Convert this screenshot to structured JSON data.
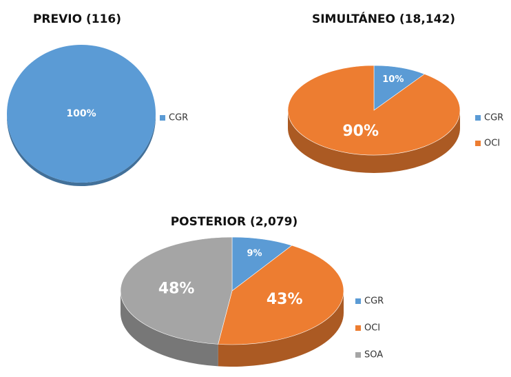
{
  "chart_data": [
    {
      "type": "pie",
      "title": "PREVIO  (116)",
      "categories": [
        "CGR"
      ],
      "values": [
        100
      ],
      "value_labels": [
        "100%"
      ],
      "colors": [
        "#5b9bd5"
      ]
    },
    {
      "type": "pie",
      "title": "SIMULTÁNEO  (18,142)",
      "categories": [
        "CGR",
        "OCI"
      ],
      "values": [
        10,
        90
      ],
      "value_labels": [
        "10%",
        "90%"
      ],
      "colors": [
        "#5b9bd5",
        "#ed7d31"
      ]
    },
    {
      "type": "pie",
      "title": "POSTERIOR  (2,079)",
      "categories": [
        "CGR",
        "OCI",
        "SOA"
      ],
      "values": [
        9,
        43,
        48
      ],
      "value_labels": [
        "9%",
        "43%",
        "48%"
      ],
      "colors": [
        "#5b9bd5",
        "#ed7d31",
        "#a5a5a5"
      ]
    }
  ]
}
